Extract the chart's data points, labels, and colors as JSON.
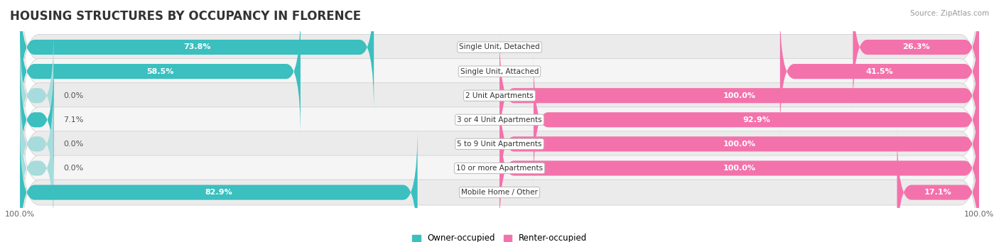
{
  "title": "HOUSING STRUCTURES BY OCCUPANCY IN FLORENCE",
  "source": "Source: ZipAtlas.com",
  "categories": [
    "Single Unit, Detached",
    "Single Unit, Attached",
    "2 Unit Apartments",
    "3 or 4 Unit Apartments",
    "5 to 9 Unit Apartments",
    "10 or more Apartments",
    "Mobile Home / Other"
  ],
  "owner_pct": [
    73.8,
    58.5,
    0.0,
    7.1,
    0.0,
    0.0,
    82.9
  ],
  "renter_pct": [
    26.3,
    41.5,
    100.0,
    92.9,
    100.0,
    100.0,
    17.1
  ],
  "owner_color": "#3bbfbf",
  "renter_color": "#f472ab",
  "owner_color_light": "#a8dcdc",
  "renter_color_light": "#f8b8d4",
  "row_bg_odd": "#ebebeb",
  "row_bg_even": "#f5f5f5",
  "title_fontsize": 12,
  "label_fontsize": 8,
  "cat_fontsize": 7.5,
  "bar_height": 0.62,
  "fig_width": 14.06,
  "fig_height": 3.41,
  "xlim": 100
}
